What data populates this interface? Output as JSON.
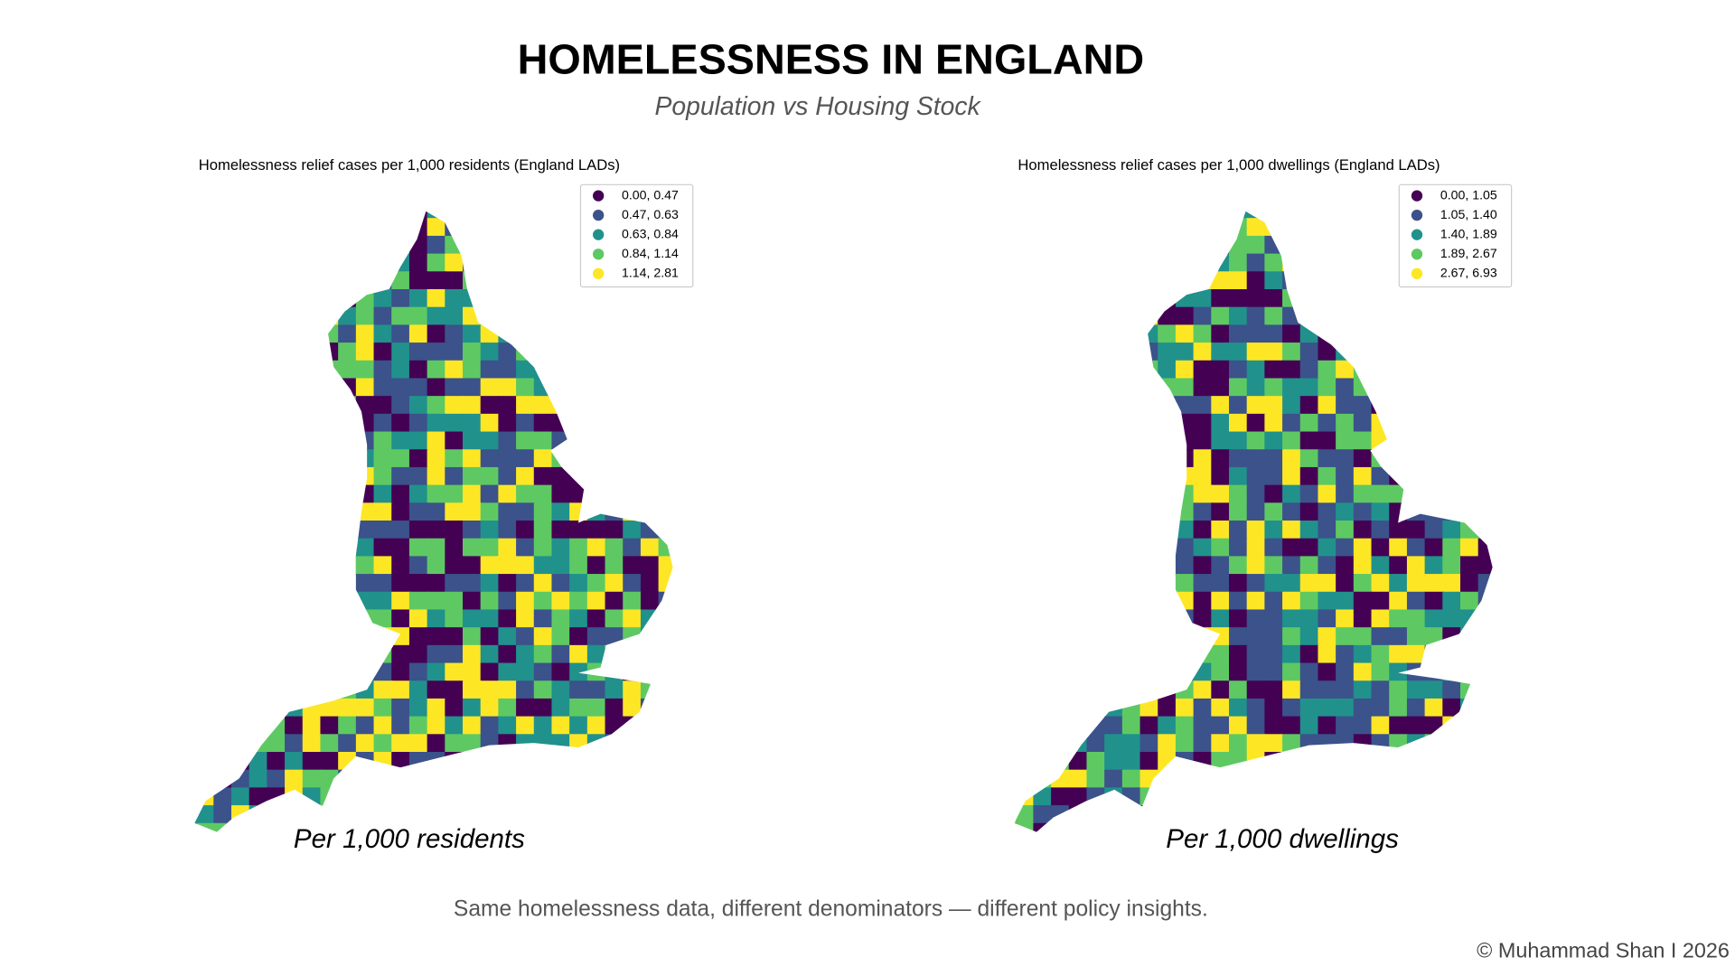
{
  "header": {
    "title": "HOMELESSNESS IN ENGLAND",
    "subtitle": "Population vs Housing Stock"
  },
  "maps": [
    {
      "title": "Homelessness relief cases per 1,000 residents (England LADs)",
      "caption": "Per 1,000 residents",
      "legend": [
        {
          "label": "0.00, 0.47",
          "color": "#440154"
        },
        {
          "label": "0.47, 0.63",
          "color": "#3b528b"
        },
        {
          "label": "0.63, 0.84",
          "color": "#21918c"
        },
        {
          "label": "0.84, 1.14",
          "color": "#5ec962"
        },
        {
          "label": "1.14, 2.81",
          "color": "#fde725"
        }
      ]
    },
    {
      "title": "Homelessness relief cases per 1,000 dwellings (England LADs)",
      "caption": "Per 1,000 dwellings",
      "legend": [
        {
          "label": "0.00, 1.05",
          "color": "#440154"
        },
        {
          "label": "1.05, 1.40",
          "color": "#3b528b"
        },
        {
          "label": "1.40, 1.89",
          "color": "#21918c"
        },
        {
          "label": "1.89, 2.67",
          "color": "#5ec962"
        },
        {
          "label": "2.67, 6.93",
          "color": "#fde725"
        }
      ]
    }
  ],
  "footer": {
    "note": "Same homelessness data, different denominators — different policy insights.",
    "credit": "© Muhammad Shan I 2026"
  }
}
